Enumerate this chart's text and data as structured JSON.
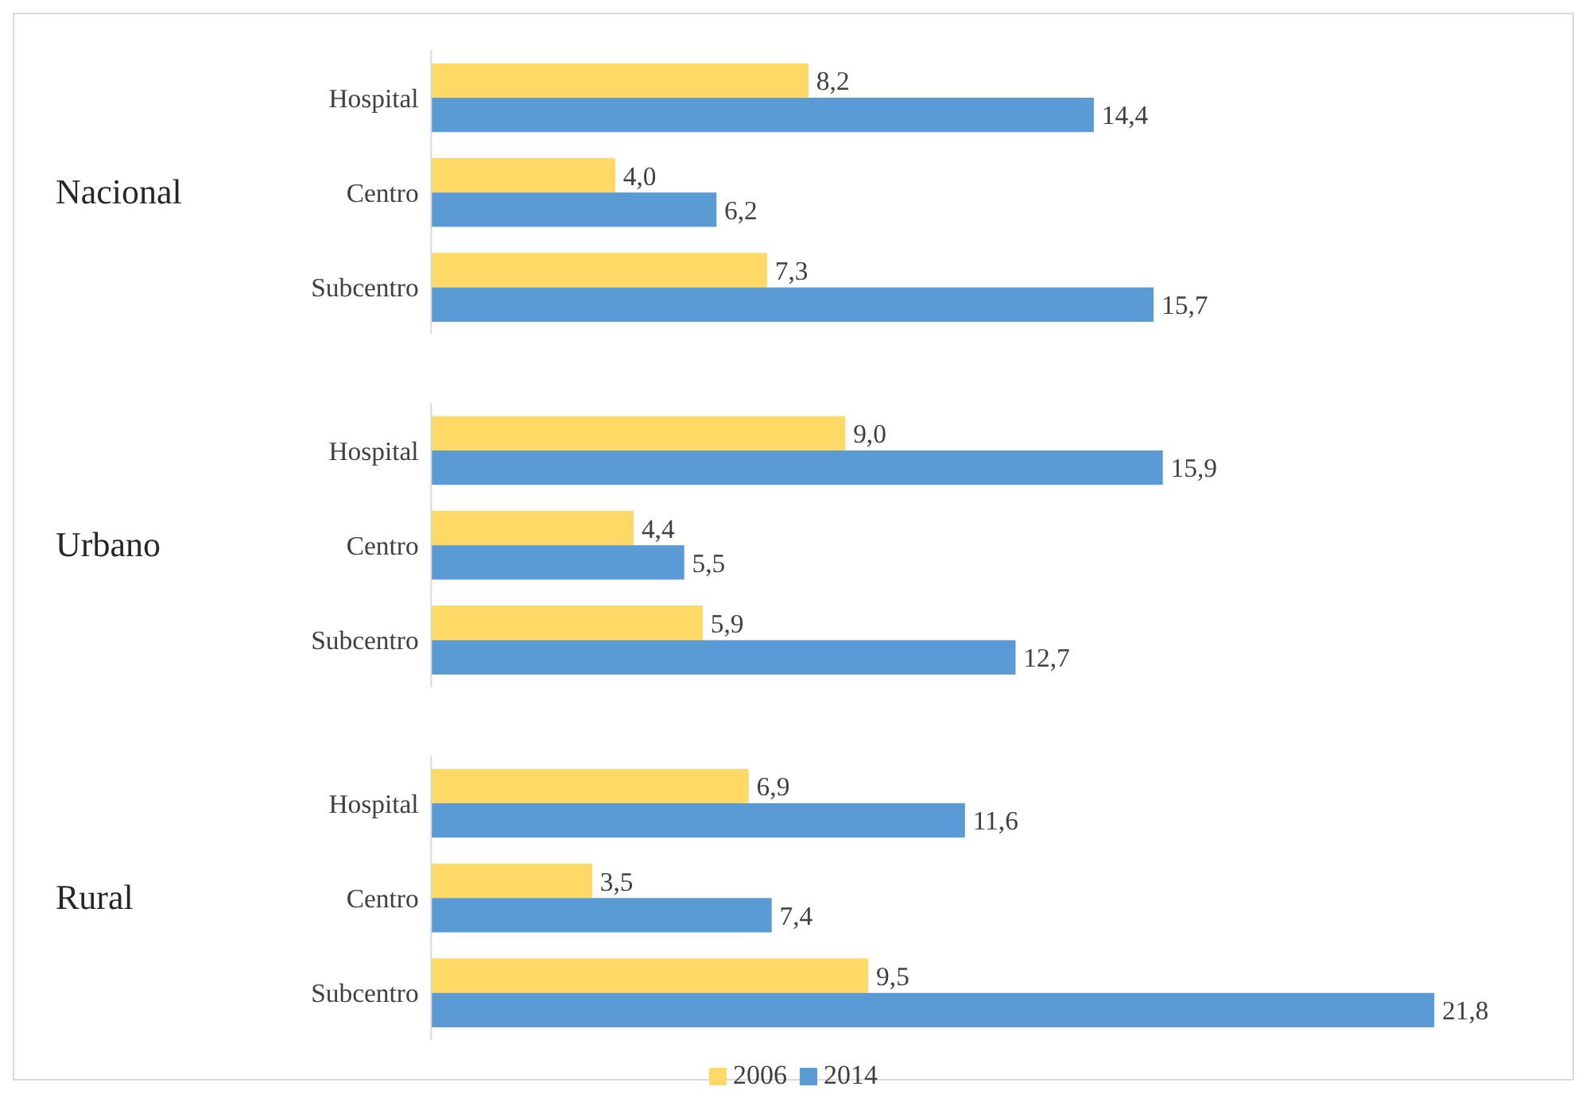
{
  "chart_data": {
    "type": "bar",
    "orientation": "horizontal",
    "categories": [
      "Hospital",
      "Centro",
      "Subcentro",
      "Hospital",
      "Centro",
      "Subcentro",
      "Hospital",
      "Centro",
      "Subcentro"
    ],
    "annotations": [
      "Nacional",
      "Urbano",
      "Rural"
    ],
    "series": [
      {
        "name": "2006",
        "color": "#ffd966",
        "values": [
          8.2,
          4.0,
          7.3,
          9.0,
          4.4,
          5.9,
          6.9,
          3.5,
          9.5
        ],
        "value_labels": [
          "8,2",
          "4,0",
          "7,3",
          "9,0",
          "4,4",
          "5,9",
          "6,9",
          "3,5",
          "9,5"
        ]
      },
      {
        "name": "2014",
        "color": "#5b9bd5",
        "values": [
          14.4,
          6.2,
          15.7,
          15.9,
          5.5,
          12.7,
          11.6,
          7.4,
          21.8
        ],
        "value_labels": [
          "14,4",
          "6,2",
          "15,7",
          "15,9",
          "5,5",
          "12,7",
          "11,6",
          "7,4",
          "21,8"
        ]
      }
    ],
    "legend": "bottom"
  }
}
